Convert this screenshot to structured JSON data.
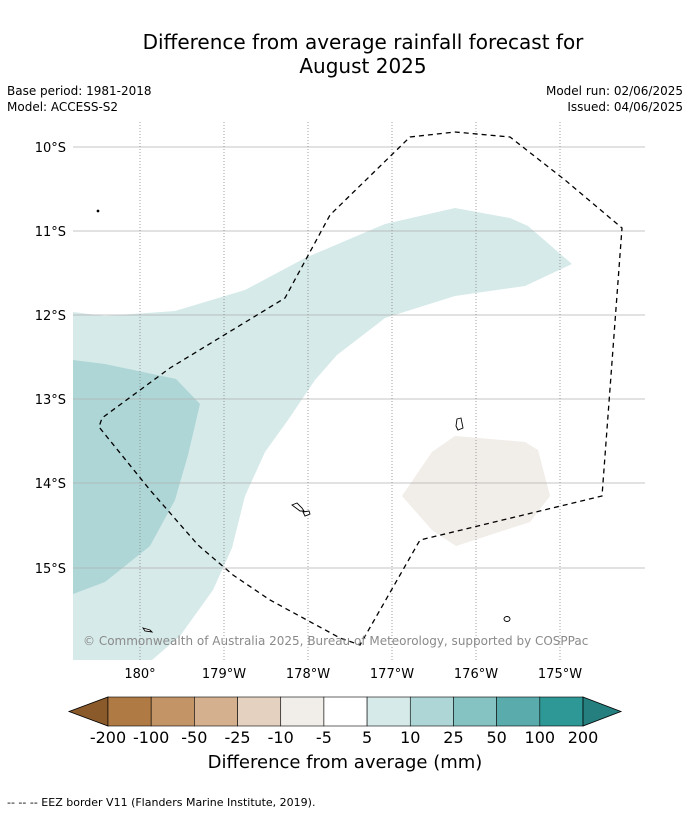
{
  "title_line1": "Difference from average rainfall forecast for",
  "title_line2": "August 2025",
  "base_period": "Base period: 1981-2018",
  "model": "Model: ACCESS-S2",
  "model_run": "Model run: 02/06/2025",
  "issued": "Issued: 04/06/2025",
  "lat_labels": [
    "10°S",
    "11°S",
    "12°S",
    "13°S",
    "14°S",
    "15°S"
  ],
  "lon_labels": [
    "180°",
    "179°W",
    "178°W",
    "177°W",
    "176°W",
    "175°W"
  ],
  "copyright": "© Commonwealth of Australia 2025, Bureau of Meteorology, supported by COSPPac",
  "colorbar": {
    "ticks": [
      "-200",
      "-100",
      "-50",
      "-25",
      "-10",
      "-5",
      "5",
      "10",
      "25",
      "50",
      "100",
      "200"
    ],
    "colors": [
      "#8a5a2b",
      "#b07a44",
      "#c29466",
      "#d4b08f",
      "#e5d1c0",
      "#f1ede8",
      "#ffffff",
      "#d6eae9",
      "#aed6d6",
      "#85c2c2",
      "#5aacac",
      "#2e9896",
      "#247f7e"
    ],
    "label": "Difference from average (mm)"
  },
  "footnote": "--  --  -- EEZ border V11 (Flanders Marine Institute, 2019)."
}
